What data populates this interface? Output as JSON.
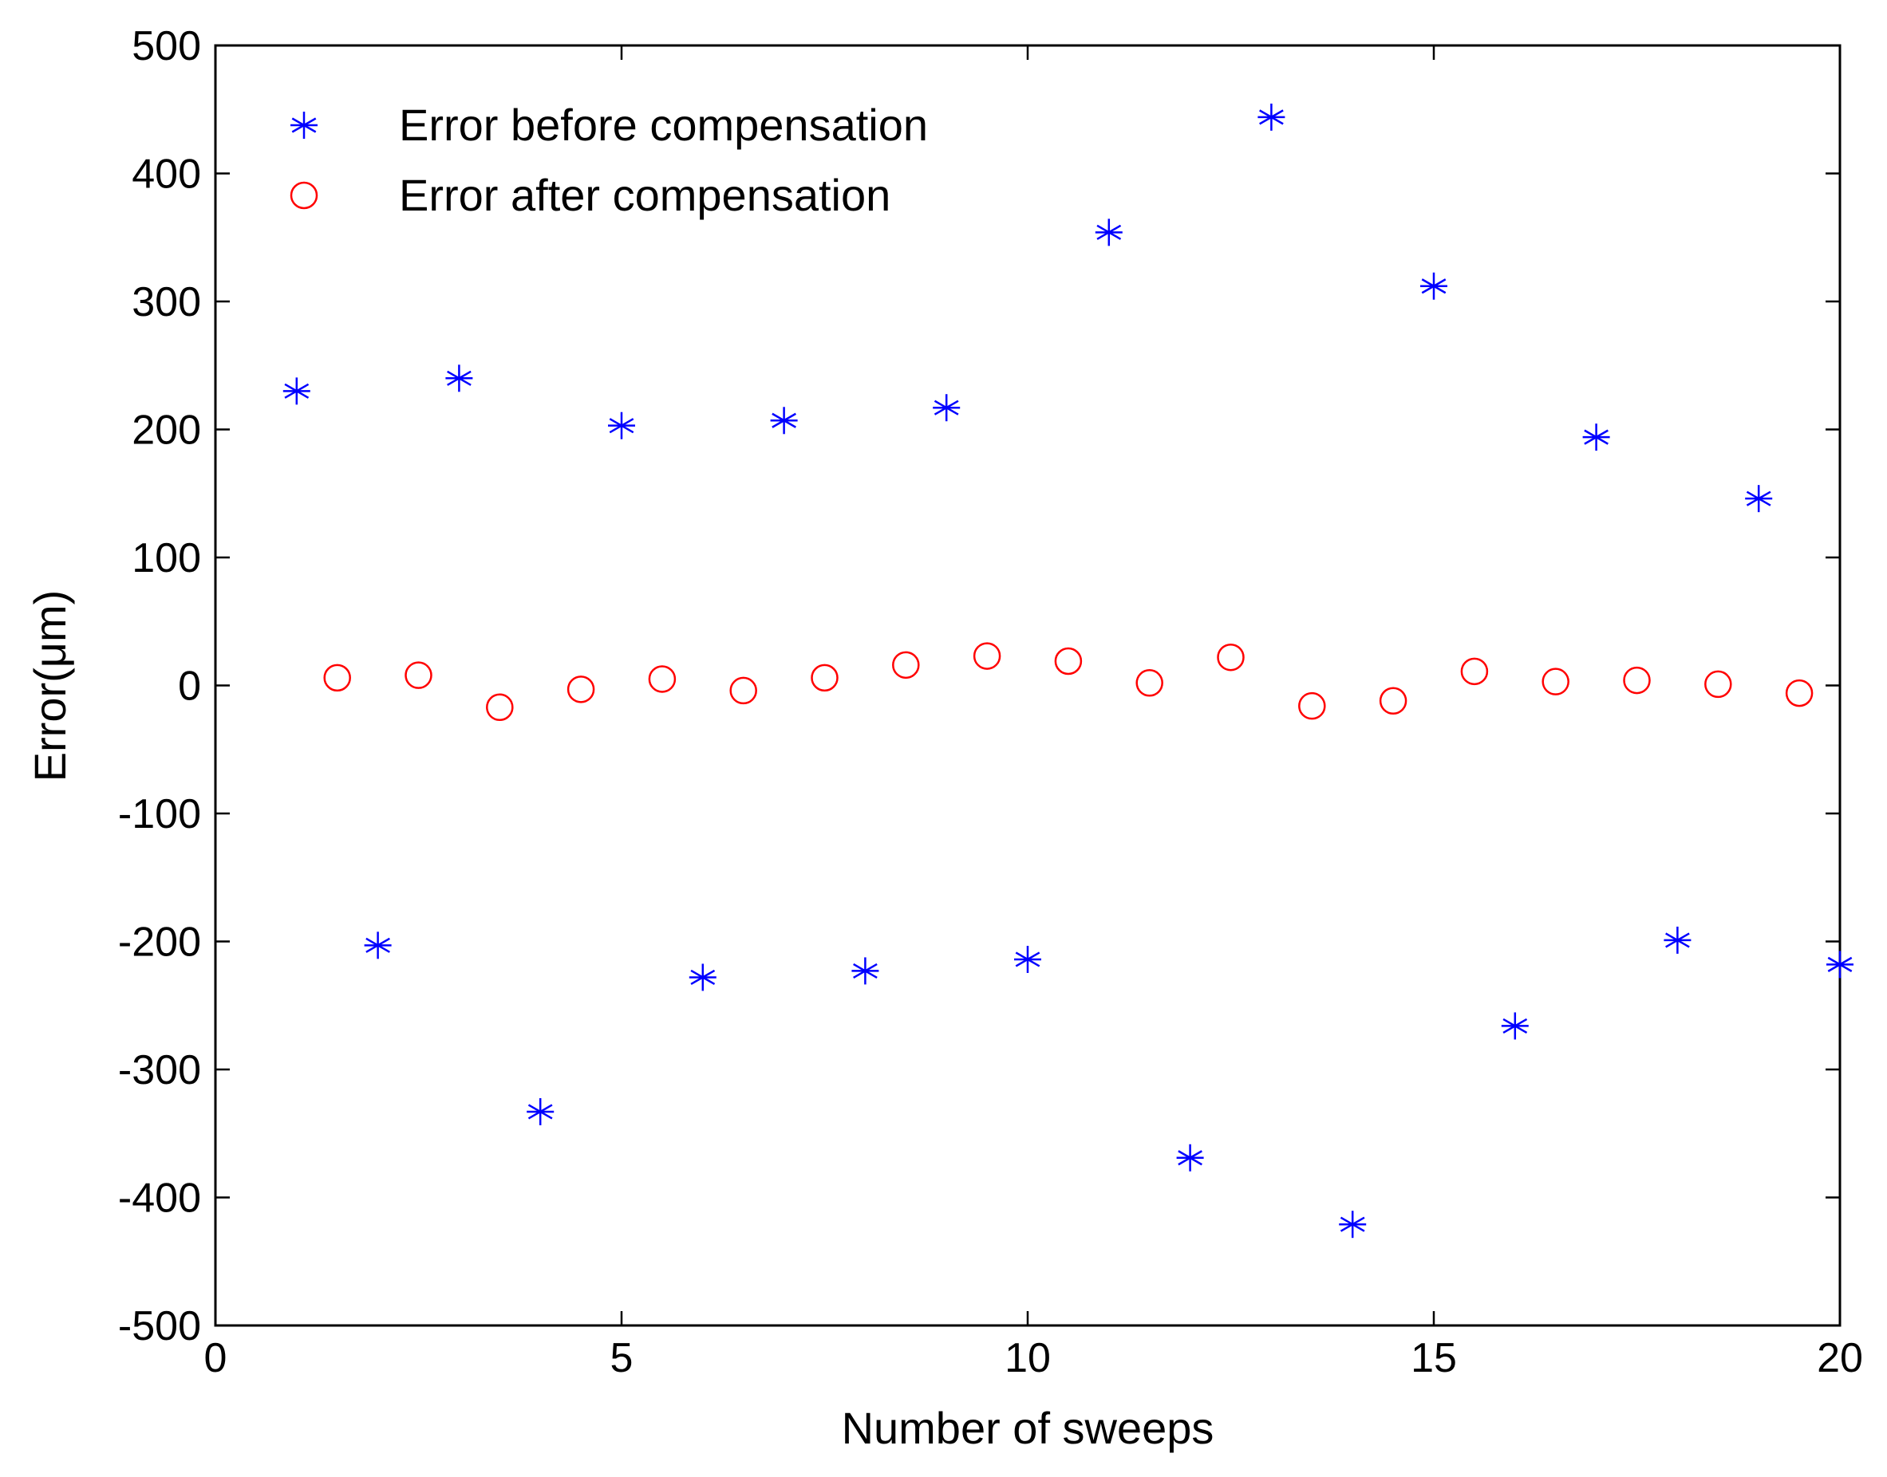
{
  "chart_data": {
    "type": "scatter",
    "title": "",
    "xlabel": "Number of sweeps",
    "ylabel": "Error(μm)",
    "xlim": [
      0,
      20
    ],
    "ylim": [
      -500,
      500
    ],
    "xticks": [
      0,
      5,
      10,
      15,
      20
    ],
    "xtick_labels": [
      "0",
      "5",
      "10",
      "15",
      "20"
    ],
    "yticks": [
      500,
      400,
      300,
      200,
      100,
      0,
      -100,
      -200,
      -300,
      -400,
      -500
    ],
    "ytick_labels": [
      "500",
      "400",
      "300",
      "200",
      "100",
      "0",
      "-100",
      "-200",
      "-300",
      "-400",
      "-500"
    ],
    "grid": false,
    "legend_position": "top-left",
    "series": [
      {
        "name": "Error before compensation",
        "marker": "asterisk",
        "color": "#0000ff",
        "x": [
          1,
          2,
          3,
          4,
          5,
          6,
          7,
          8,
          9,
          10,
          11,
          12,
          13,
          14,
          15,
          16,
          17,
          18,
          19,
          20
        ],
        "y": [
          230,
          -203,
          240,
          -333,
          203,
          -228,
          207,
          -223,
          217,
          -214,
          354,
          -369,
          444,
          -421,
          312,
          -266,
          194,
          -199,
          146,
          -218
        ]
      },
      {
        "name": "Error after compensation",
        "marker": "circle",
        "color": "#ff0000",
        "x": [
          1.5,
          2.5,
          3.5,
          4.5,
          5.5,
          6.5,
          7.5,
          8.5,
          9.5,
          10.5,
          11.5,
          12.5,
          13.5,
          14.5,
          15.5,
          16.5,
          17.5,
          18.5,
          19.5
        ],
        "y": [
          6,
          8,
          -17,
          -3,
          5,
          -4,
          6,
          16,
          23,
          19,
          2,
          22,
          -16,
          -12,
          11,
          3,
          4,
          1,
          -6
        ]
      }
    ]
  }
}
